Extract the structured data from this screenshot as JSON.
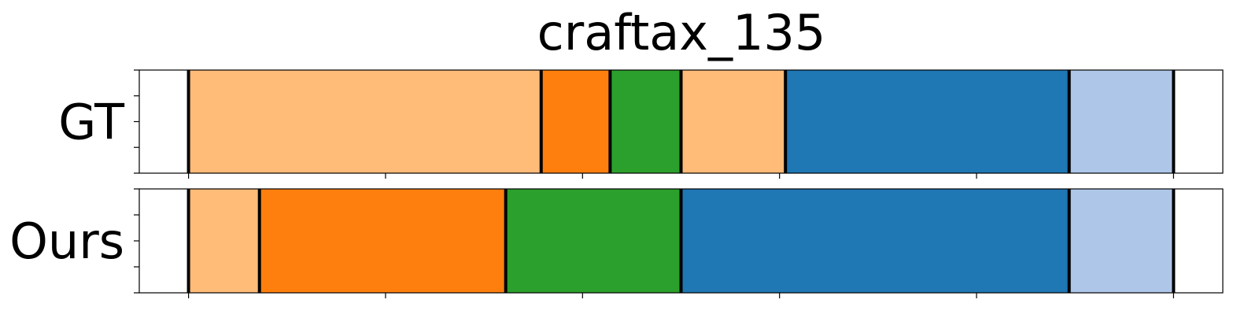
{
  "chart_data": {
    "type": "bar",
    "title": "craftax_135",
    "xlim": [
      -25,
      525
    ],
    "x_ticks": [
      0,
      100,
      200,
      300,
      400,
      500
    ],
    "tick_labels_visible": false,
    "y_minor_ticks": 5,
    "grid": false,
    "legend": "none",
    "boundary_color": "#000000",
    "rows": [
      {
        "label": "GT",
        "segments": [
          {
            "start": 0,
            "end": 179,
            "color": "#ffbb78"
          },
          {
            "start": 179,
            "end": 214,
            "color": "#ff7f0e"
          },
          {
            "start": 214,
            "end": 250,
            "color": "#2ca02c"
          },
          {
            "start": 250,
            "end": 303,
            "color": "#ffbb78"
          },
          {
            "start": 303,
            "end": 447,
            "color": "#1f77b4"
          },
          {
            "start": 447,
            "end": 500,
            "color": "#aec7e8"
          }
        ]
      },
      {
        "label": "Ours",
        "segments": [
          {
            "start": 0,
            "end": 36,
            "color": "#ffbb78"
          },
          {
            "start": 36,
            "end": 161,
            "color": "#ff7f0e"
          },
          {
            "start": 161,
            "end": 250,
            "color": "#2ca02c"
          },
          {
            "start": 250,
            "end": 447,
            "color": "#1f77b4"
          },
          {
            "start": 447,
            "end": 500,
            "color": "#aec7e8"
          }
        ]
      }
    ]
  }
}
